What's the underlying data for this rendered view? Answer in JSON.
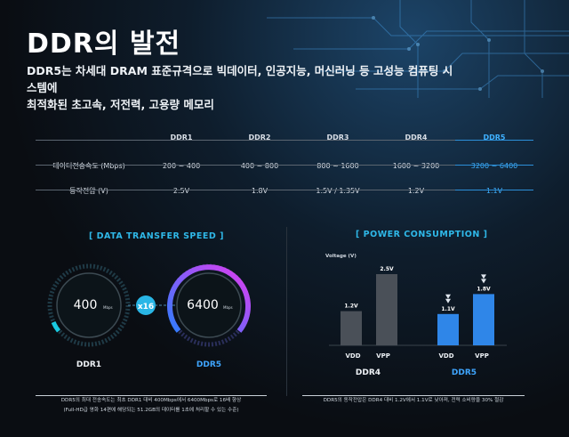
{
  "title": "DDR의 발전",
  "subtitle": {
    "line1": "DDR5는 차세대 DRAM 표준규격으로 빅데이터, 인공지능, 머신러닝 등 고성능 컴퓨팅 시스템에",
    "line2": "최적화된 초고속, 저전력, 고용량 메모리"
  },
  "table": {
    "columns": [
      "DDR1",
      "DDR2",
      "DDR3",
      "DDR4",
      "DDR5"
    ],
    "rows": [
      {
        "label": "데이터전송속도 (Mbps)",
        "values": [
          "200 ~ 400",
          "400 ~ 800",
          "800 ~ 1600",
          "1600 ~ 3200",
          "3200 ~ 6400"
        ]
      },
      {
        "label": "동작전압 (V)",
        "values": [
          "2.5V",
          "1.8V",
          "1.5V / 1.35V",
          "1.2V",
          "1.1V"
        ]
      }
    ]
  },
  "transfer": {
    "title": "[ DATA TRANSFER SPEED ]",
    "left": {
      "value": "400",
      "unit": "Mbps",
      "label": "DDR1"
    },
    "right": {
      "value": "6400",
      "unit": "Mbps",
      "label": "DDR5"
    },
    "multiplier": "x16",
    "note1": "DDR5의 최대 전송속도는 최초 DDR1 대비 400Mbps에서 6400Mbps로 16배 향상",
    "note2": "(Full-HD급 영화 14편에 해당되는 51.2GB의 데이터를 1초에 처리할 수 있는 수준)"
  },
  "power": {
    "title": "[ POWER CONSUMPTION ]",
    "ylabel": "Voltage (V)",
    "ddr4": {
      "label": "DDR4",
      "vdd": "1.2V",
      "vpp": "2.5V",
      "vdd_value": 1.2,
      "vpp_value": 2.5
    },
    "ddr5": {
      "label": "DDR5",
      "vdd": "1.1V",
      "vpp": "1.8V",
      "vdd_value": 1.1,
      "vpp_value": 1.8
    },
    "vdd_label": "VDD",
    "vpp_label": "VPP",
    "note": "DDR5의 동작전압은 DDR4 대비 1.2V에서 1.1V로 낮아져, 전력 소비량을 30% 절감"
  },
  "colors": {
    "accent": "#3fb1ff",
    "cyan": "#2fb8e8",
    "magenta": "#d23cff",
    "gray_bar": "#4a5058"
  }
}
